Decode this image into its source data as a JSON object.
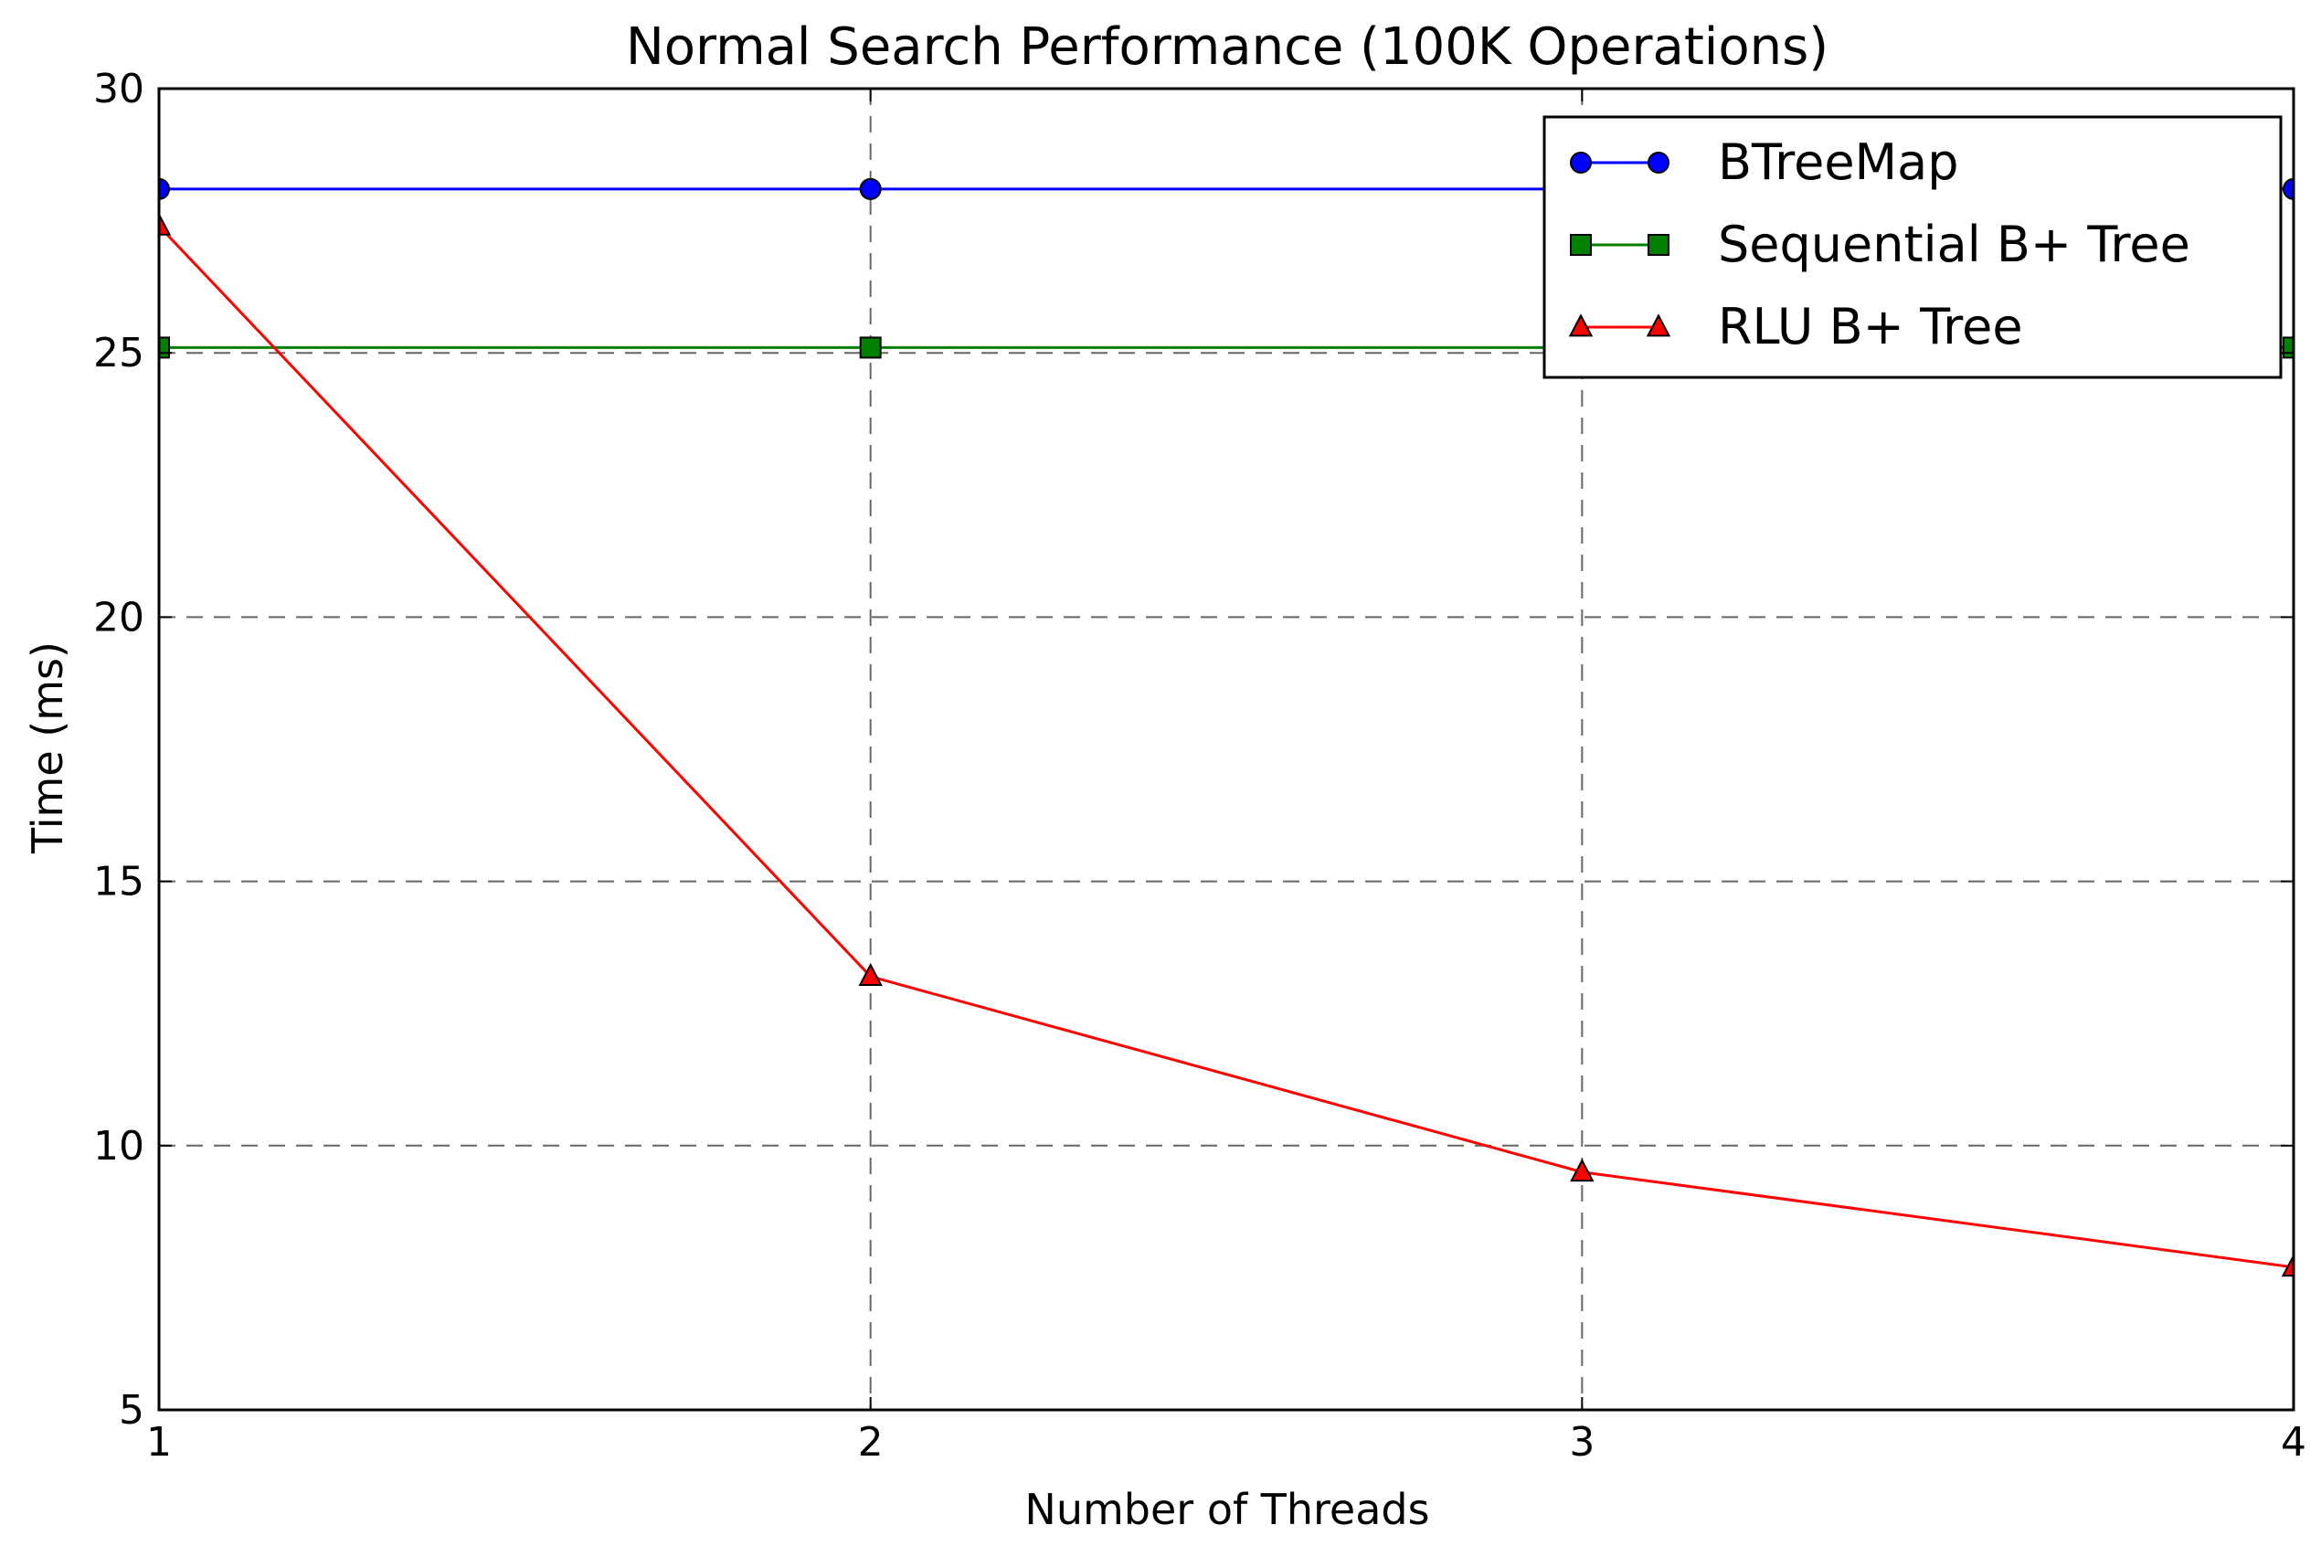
{
  "chart_data": {
    "type": "line",
    "title": "Normal Search Performance (100K Operations)",
    "xlabel": "Number of Threads",
    "ylabel": "Time (ms)",
    "x": [
      1,
      2,
      3,
      4
    ],
    "xlim": [
      1,
      4
    ],
    "ylim": [
      5,
      30
    ],
    "xticks": [
      "1",
      "2",
      "3",
      "4"
    ],
    "yticks": [
      "5",
      "10",
      "15",
      "20",
      "25",
      "30"
    ],
    "grid": true,
    "legend_position": "top-right",
    "series": [
      {
        "name": "BTreeMap",
        "values": [
          28.1,
          28.1,
          28.1,
          28.1
        ],
        "color": "#0000ff",
        "marker": "circle"
      },
      {
        "name": "Sequential B+ Tree",
        "values": [
          25.1,
          25.1,
          25.1,
          25.1
        ],
        "color": "#008000",
        "marker": "square"
      },
      {
        "name": "RLU B+ Tree",
        "values": [
          27.4,
          13.2,
          9.5,
          7.7
        ],
        "color": "#ff0000",
        "marker": "triangle"
      }
    ]
  }
}
